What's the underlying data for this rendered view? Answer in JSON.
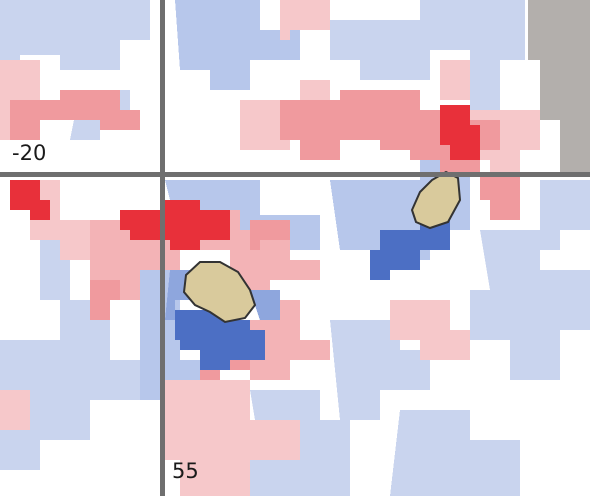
{
  "labels": {
    "horizontal": "-20",
    "vertical": "55"
  }
}
